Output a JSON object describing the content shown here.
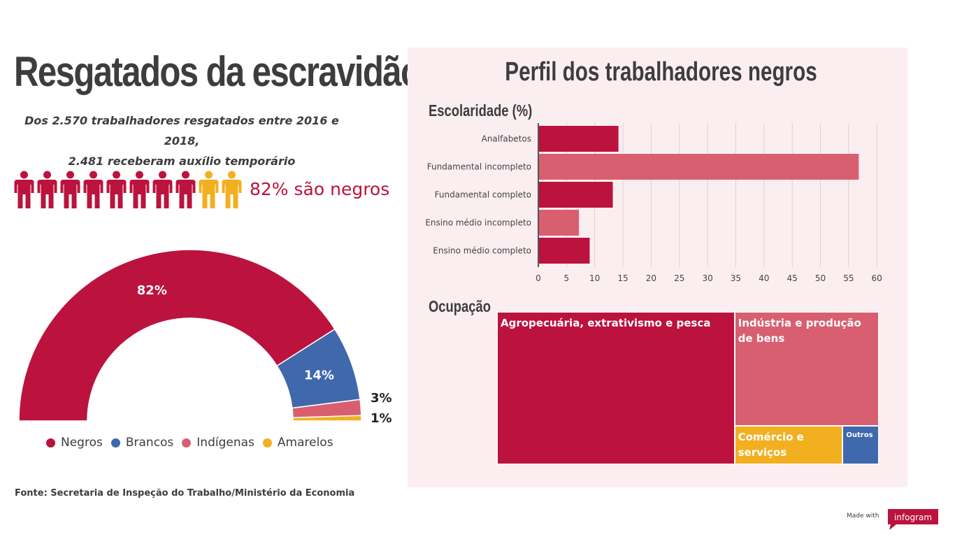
{
  "header": {
    "title": "Resgatados da escravidão",
    "subtitle_line1": "Dos 2.570 trabalhadores resgatados entre 2016 e 2018,",
    "subtitle_line2": "2.481 receberam auxílio temporário"
  },
  "people_graphic": {
    "total_icons": 10,
    "highlighted_icons": 8,
    "label": "82% são negros",
    "highlight_color": "#bb133e",
    "other_color": "#f2b021"
  },
  "panel": {
    "title": "Perfil dos trabalhadores negros",
    "education_title": "Escolaridade (%)",
    "occupation_title": "Ocupação"
  },
  "source": "Fonte: Secretaria de Inspeção do Trabalho/Ministério da Economia",
  "branding": {
    "made_with": "Made with",
    "logo": "infogram"
  },
  "chart_data": [
    {
      "type": "pie",
      "subtype": "semi-donut",
      "categories": [
        "Negros",
        "Brancos",
        "Indígenas",
        "Amarelos"
      ],
      "values": [
        82,
        14,
        3,
        1
      ],
      "data_labels": [
        "82%",
        "14%",
        "3%",
        "1%"
      ],
      "colors": [
        "#bb133e",
        "#4068ad",
        "#d85f6f",
        "#f2b021"
      ],
      "legend": "bottom"
    },
    {
      "type": "bar",
      "orientation": "horizontal",
      "title": "Escolaridade (%)",
      "categories": [
        "Analfabetos",
        "Fundamental incompleto",
        "Fundamental completo",
        "Ensino médio incompleto",
        "Ensino médio completo"
      ],
      "values": [
        14.2,
        56.8,
        13.2,
        7.2,
        9.1
      ],
      "colors": [
        "#bb133e",
        "#d85f6f",
        "#bb133e",
        "#d85f6f",
        "#bb133e"
      ],
      "xlim": [
        0,
        60
      ],
      "xticks": [
        "0",
        "5",
        "10",
        "15",
        "20",
        "25",
        "30",
        "35",
        "40",
        "45",
        "50",
        "55",
        "60"
      ],
      "grid": true
    },
    {
      "type": "treemap",
      "title": "Ocupação",
      "categories": [
        "Agropecuária, extrativismo e pesca",
        "Indústria e produção de bens",
        "Comércio e serviços",
        "Outros"
      ],
      "values": [
        62.2,
        28.2,
        7.2,
        2.4
      ],
      "colors": [
        "#bb133e",
        "#d85f6f",
        "#f2b021",
        "#4068ad"
      ]
    }
  ]
}
